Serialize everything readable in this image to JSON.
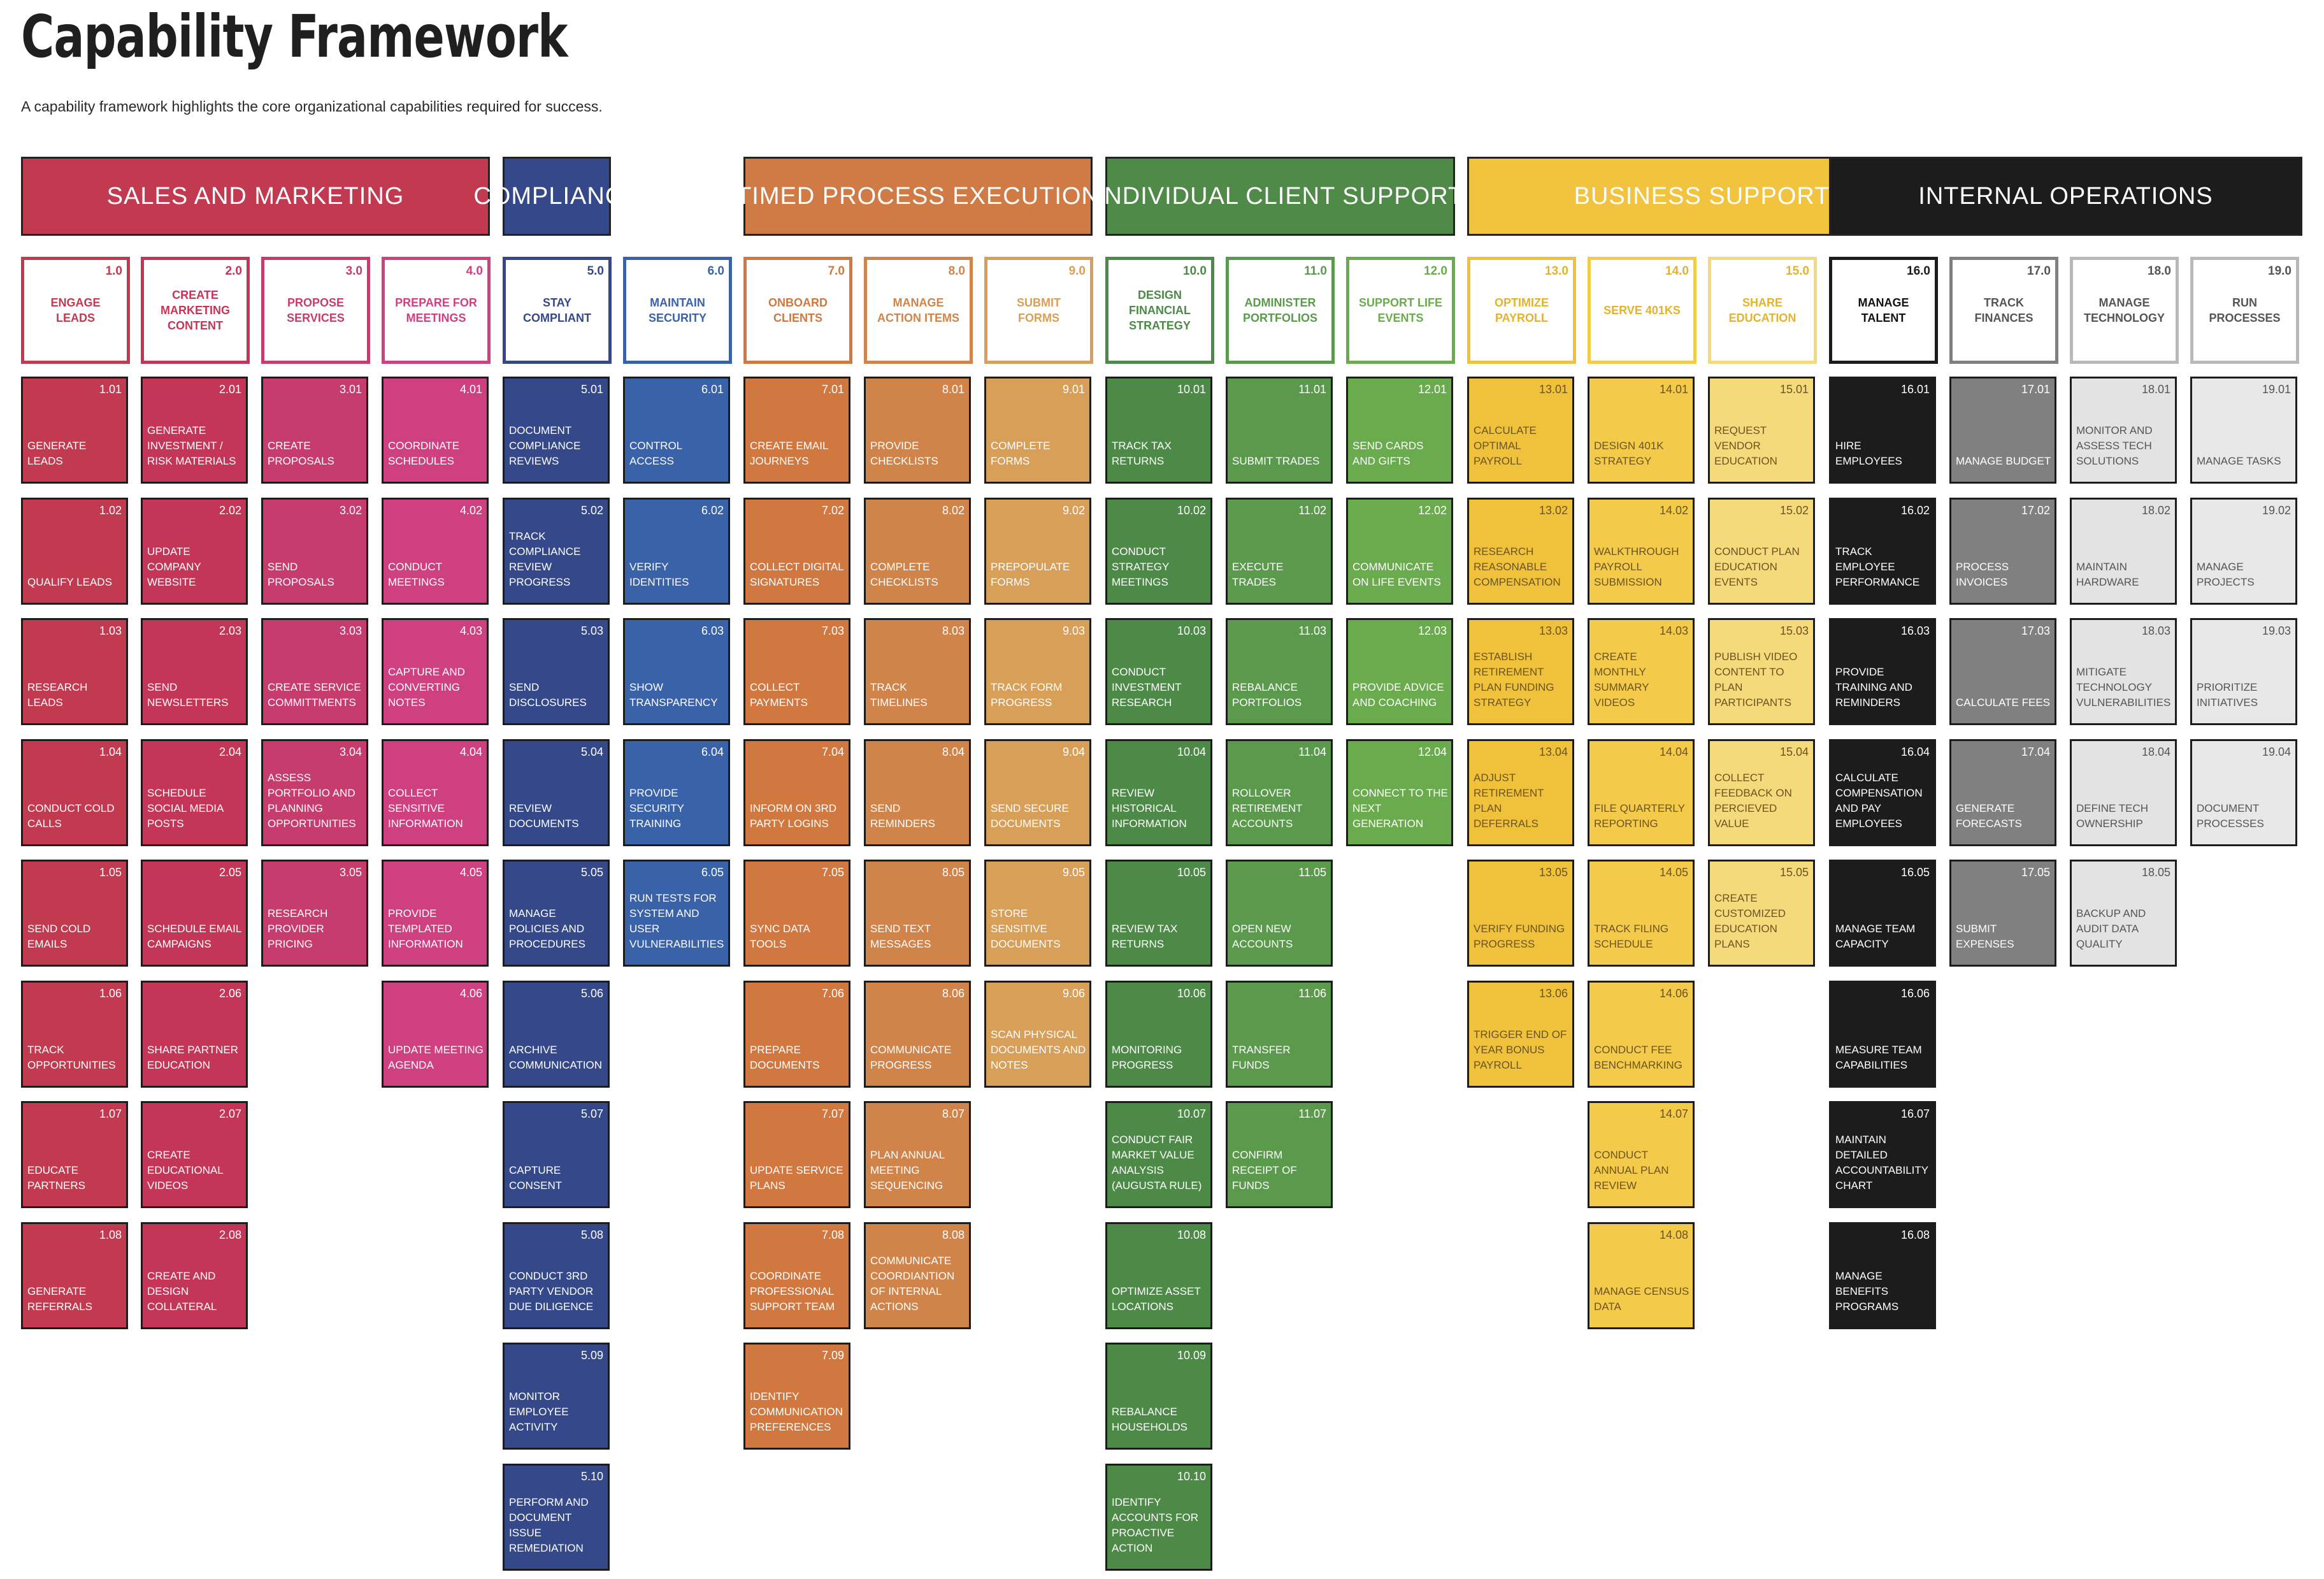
{
  "title": "Capability Framework",
  "subtitle": "A capability framework highlights the core organizational capabilities required for success.",
  "groups": [
    {
      "name": "SALES AND MARKETING",
      "color": "#c23a50",
      "capabilities": [
        {
          "number": "1.0",
          "name": "ENGAGE LEADS",
          "border": "#c23a50",
          "tile_color": "#c23a50",
          "text_color": "#ffffff",
          "items": [
            {
              "id": "1.01",
              "label": "Generate leads"
            },
            {
              "id": "1.02",
              "label": "Qualify leads"
            },
            {
              "id": "1.03",
              "label": "Research leads"
            },
            {
              "id": "1.04",
              "label": "Conduct cold calls"
            },
            {
              "id": "1.05",
              "label": "Send cold emails"
            },
            {
              "id": "1.06",
              "label": "Track opportunities"
            },
            {
              "id": "1.07",
              "label": "Educate partners"
            },
            {
              "id": "1.08",
              "label": "Generate referrals"
            }
          ]
        },
        {
          "number": "2.0",
          "name": "CREATE MARKETING CONTENT",
          "border": "#c43658",
          "tile_color": "#c43658",
          "text_color": "#ffffff",
          "items": [
            {
              "id": "2.01",
              "label": "Generate investment / risk materials"
            },
            {
              "id": "2.02",
              "label": "Update company website"
            },
            {
              "id": "2.03",
              "label": "Send newsletters"
            },
            {
              "id": "2.04",
              "label": "Schedule social media posts"
            },
            {
              "id": "2.05",
              "label": "Schedule email campaigns"
            },
            {
              "id": "2.06",
              "label": "Share partner education"
            },
            {
              "id": "2.07",
              "label": "Create educational videos"
            },
            {
              "id": "2.08",
              "label": "Create and design collateral"
            }
          ]
        },
        {
          "number": "3.0",
          "name": "PROPOSE SERVICES",
          "border": "#c63c6c",
          "tile_color": "#c63c6c",
          "text_color": "#ffffff",
          "items": [
            {
              "id": "3.01",
              "label": "Create proposals"
            },
            {
              "id": "3.02",
              "label": "Send proposals"
            },
            {
              "id": "3.03",
              "label": "Create service committments"
            },
            {
              "id": "3.04",
              "label": "Assess portfolio and planning opportunities"
            },
            {
              "id": "3.05",
              "label": "Research provider pricing"
            }
          ]
        },
        {
          "number": "4.0",
          "name": "PREPARE FOR MEETINGS",
          "border": "#cf4080",
          "tile_color": "#cf4080",
          "text_color": "#ffffff",
          "items": [
            {
              "id": "4.01",
              "label": "Coordinate schedules"
            },
            {
              "id": "4.02",
              "label": "Conduct meetings"
            },
            {
              "id": "4.03",
              "label": "Capture and converting notes"
            },
            {
              "id": "4.04",
              "label": "Collect sensitive information"
            },
            {
              "id": "4.05",
              "label": "Provide templated information"
            },
            {
              "id": "4.06",
              "label": "Update meeting agenda"
            }
          ]
        }
      ]
    },
    {
      "name": "COMPLIANCE",
      "color": "#35488a",
      "capabilities": [
        {
          "number": "5.0",
          "name": "STAY COMPLIANT",
          "border": "#34488a",
          "tile_color": "#34488a",
          "text_color": "#ffffff",
          "items": [
            {
              "id": "5.01",
              "label": "Document compliance reviews"
            },
            {
              "id": "5.02",
              "label": "Track compliance review progress"
            },
            {
              "id": "5.03",
              "label": "Send disclosures"
            },
            {
              "id": "5.04",
              "label": "Review documents"
            },
            {
              "id": "5.05",
              "label": "Manage policies and procedures"
            },
            {
              "id": "5.06",
              "label": "Archive communication"
            },
            {
              "id": "5.07",
              "label": "Capture consent"
            },
            {
              "id": "5.08",
              "label": "Conduct 3rd party vendor due diligence"
            },
            {
              "id": "5.09",
              "label": "Monitor employee activity"
            },
            {
              "id": "5.10",
              "label": "Perform and document issue remediation"
            }
          ]
        },
        {
          "number": "6.0",
          "name": "MAINTAIN SECURITY",
          "border": "#3a62a8",
          "tile_color": "#3a62a8",
          "text_color": "#ffffff",
          "items": [
            {
              "id": "6.01",
              "label": "Control access"
            },
            {
              "id": "6.02",
              "label": "Verify identities"
            },
            {
              "id": "6.03",
              "label": "Show transparency"
            },
            {
              "id": "6.04",
              "label": "Provide security training"
            },
            {
              "id": "6.05",
              "label": "Run tests for system and user vulnerabilities"
            }
          ]
        }
      ]
    },
    {
      "name": "TIMED PROCESS EXECUTION",
      "color": "#d07b45",
      "capabilities": [
        {
          "number": "7.0",
          "name": "ONBOARD CLIENTS",
          "border": "#d07840",
          "tile_color": "#d07840",
          "text_color": "#ffffff",
          "items": [
            {
              "id": "7.01",
              "label": "Create email journeys"
            },
            {
              "id": "7.02",
              "label": "Collect digital signatures"
            },
            {
              "id": "7.03",
              "label": "Collect payments"
            },
            {
              "id": "7.04",
              "label": "Inform on 3rd party logins"
            },
            {
              "id": "7.05",
              "label": "Sync data tools"
            },
            {
              "id": "7.06",
              "label": "Prepare documents"
            },
            {
              "id": "7.07",
              "label": "Update service plans"
            },
            {
              "id": "7.08",
              "label": "Coordinate professional support team"
            },
            {
              "id": "7.09",
              "label": "Identify communication preferences"
            }
          ]
        },
        {
          "number": "8.0",
          "name": "MANAGE ACTION ITEMS",
          "border": "#d0844a",
          "tile_color": "#d0844a",
          "text_color": "#ffffff",
          "items": [
            {
              "id": "8.01",
              "label": "Provide checklists"
            },
            {
              "id": "8.02",
              "label": "Complete checklists"
            },
            {
              "id": "8.03",
              "label": "Track timelines"
            },
            {
              "id": "8.04",
              "label": "Send reminders"
            },
            {
              "id": "8.05",
              "label": "Send text messages"
            },
            {
              "id": "8.06",
              "label": "Communicate progress"
            },
            {
              "id": "8.07",
              "label": "Plan annual meeting sequencing"
            },
            {
              "id": "8.08",
              "label": "Communicate coordiantion of internal actions"
            }
          ]
        },
        {
          "number": "9.0",
          "name": "SUBMIT FORMS",
          "border": "#d89f58",
          "tile_color": "#d89f58",
          "text_color": "#ffffff",
          "items": [
            {
              "id": "9.01",
              "label": "Complete forms"
            },
            {
              "id": "9.02",
              "label": "Prepopulate forms"
            },
            {
              "id": "9.03",
              "label": "Track form progress"
            },
            {
              "id": "9.04",
              "label": "Send secure documents"
            },
            {
              "id": "9.05",
              "label": "Store sensitive documents"
            },
            {
              "id": "9.06",
              "label": "Scan physical documents and notes"
            }
          ]
        }
      ]
    },
    {
      "name": "INDIVIDUAL CLIENT SUPPORT",
      "color": "#4f8a48",
      "capabilities": [
        {
          "number": "10.0",
          "name": "DESIGN FINANCIAL STRATEGY",
          "border": "#4d8a47",
          "tile_color": "#4d8a47",
          "text_color": "#ffffff",
          "items": [
            {
              "id": "10.01",
              "label": "Track tax returns"
            },
            {
              "id": "10.02",
              "label": "Conduct strategy meetings"
            },
            {
              "id": "10.03",
              "label": "Conduct investment research"
            },
            {
              "id": "10.04",
              "label": "Review historical information"
            },
            {
              "id": "10.05",
              "label": "Review tax returns"
            },
            {
              "id": "10.06",
              "label": "Monitoring progress"
            },
            {
              "id": "10.07",
              "label": "Conduct fair market value analysis (augusta rule)"
            },
            {
              "id": "10.08",
              "label": "Optimize asset locations"
            },
            {
              "id": "10.09",
              "label": "Rebalance households"
            },
            {
              "id": "10.10",
              "label": "Identify accounts for proactive action"
            }
          ]
        },
        {
          "number": "11.0",
          "name": "ADMINISTER PORTFOLIOS",
          "border": "#5b9a4c",
          "tile_color": "#5b9a4c",
          "text_color": "#ffffff",
          "items": [
            {
              "id": "11.01",
              "label": "Submit trades"
            },
            {
              "id": "11.02",
              "label": "Execute trades"
            },
            {
              "id": "11.03",
              "label": "Rebalance portfolios"
            },
            {
              "id": "11.04",
              "label": "Rollover retirement accounts"
            },
            {
              "id": "11.05",
              "label": "Open new accounts"
            },
            {
              "id": "11.06",
              "label": "Transfer funds"
            },
            {
              "id": "11.07",
              "label": "Confirm receipt of funds"
            }
          ]
        },
        {
          "number": "12.0",
          "name": "SUPPORT LIFE EVENTS",
          "border": "#6aab4e",
          "tile_color": "#6aab4e",
          "text_color": "#ffffff",
          "items": [
            {
              "id": "12.01",
              "label": "Send cards and gifts"
            },
            {
              "id": "12.02",
              "label": "Communicate on life events"
            },
            {
              "id": "12.03",
              "label": "Provide advice and coaching"
            },
            {
              "id": "12.04",
              "label": "Connect to the next generation"
            }
          ]
        }
      ]
    },
    {
      "name": "BUSINESS SUPPORT",
      "color": "#f2c33e",
      "capabilities": [
        {
          "number": "13.0",
          "name": "OPTIMIZE PAYROLL",
          "border": "#f0c23c",
          "tile_color": "#f0c23c",
          "text_color": "#6b5420",
          "items": [
            {
              "id": "13.01",
              "label": "Calculate optimal payroll"
            },
            {
              "id": "13.02",
              "label": "Research reasonable compensation"
            },
            {
              "id": "13.03",
              "label": "Establish retirement plan funding strategy"
            },
            {
              "id": "13.04",
              "label": "Adjust retirement plan deferrals"
            },
            {
              "id": "13.05",
              "label": "Verify funding progress"
            },
            {
              "id": "13.06",
              "label": "Trigger end of year bonus payroll"
            }
          ]
        },
        {
          "number": "14.0",
          "name": "SERVE 401KS",
          "border": "#f4ca4a",
          "tile_color": "#f4ca4a",
          "text_color": "#6b5420",
          "items": [
            {
              "id": "14.01",
              "label": "Design 401k strategy"
            },
            {
              "id": "14.02",
              "label": "Walkthrough payroll submission"
            },
            {
              "id": "14.03",
              "label": "Create monthly summary videos"
            },
            {
              "id": "14.04",
              "label": "File quarterly reporting"
            },
            {
              "id": "14.05",
              "label": "Track filing schedule"
            },
            {
              "id": "14.06",
              "label": "Conduct fee benchmarking"
            },
            {
              "id": "14.07",
              "label": "Conduct annual plan review"
            },
            {
              "id": "14.08",
              "label": "Manage census data"
            }
          ]
        },
        {
          "number": "15.0",
          "name": "SHARE EDUCATION",
          "border": "#f5da7c",
          "tile_color": "#f5da7c",
          "text_color": "#6b5420",
          "items": [
            {
              "id": "15.01",
              "label": "Request vendor education"
            },
            {
              "id": "15.02",
              "label": "Conduct plan education events"
            },
            {
              "id": "15.03",
              "label": "Publish video content to plan participants"
            },
            {
              "id": "15.04",
              "label": "Collect feedback on percieved value"
            },
            {
              "id": "15.05",
              "label": "Create customized education plans"
            }
          ]
        }
      ]
    },
    {
      "name": "INTERNAL OPERATIONS",
      "color": "#1c1c1c",
      "capabilities": [
        {
          "number": "16.0",
          "name": "MANAGE TALENT",
          "border": "#1c1c1c",
          "tile_color": "#1c1c1c",
          "text_color": "#ffffff",
          "items": [
            {
              "id": "16.01",
              "label": "Hire employees"
            },
            {
              "id": "16.02",
              "label": "Track employee performance"
            },
            {
              "id": "16.03",
              "label": "Provide training and reminders"
            },
            {
              "id": "16.04",
              "label": "Calculate compensation and pay employees"
            },
            {
              "id": "16.05",
              "label": "Manage team capacity"
            },
            {
              "id": "16.06",
              "label": "Measure team capabilities"
            },
            {
              "id": "16.07",
              "label": "Maintain detailed accountability chart"
            },
            {
              "id": "16.08",
              "label": "Manage benefits programs"
            }
          ]
        },
        {
          "number": "17.0",
          "name": "TRACK FINANCES",
          "border": "#808080",
          "tile_color": "#808080",
          "text_color": "#ffffff",
          "items": [
            {
              "id": "17.01",
              "label": "Manage budget"
            },
            {
              "id": "17.02",
              "label": "Process invoices"
            },
            {
              "id": "17.03",
              "label": "Calculate fees"
            },
            {
              "id": "17.04",
              "label": "Generate forecasts"
            },
            {
              "id": "17.05",
              "label": "Submit expenses"
            }
          ]
        },
        {
          "number": "18.0",
          "name": "MANAGE TECHNOLOGY",
          "border": "#b9b9b9",
          "tile_color": "#e3e3e3",
          "text_color": "#555555",
          "items": [
            {
              "id": "18.01",
              "label": "Monitor and assess tech solutions"
            },
            {
              "id": "18.02",
              "label": "Maintain hardware"
            },
            {
              "id": "18.03",
              "label": "Mitigate technology vulnerabilities"
            },
            {
              "id": "18.04",
              "label": "Define tech ownership"
            },
            {
              "id": "18.05",
              "label": "Backup and audit data quality"
            }
          ]
        },
        {
          "number": "19.0",
          "name": "RUN PROCESSES",
          "border": "#b9b9b9",
          "tile_color": "#e8e8e8",
          "text_color": "#555555",
          "items": [
            {
              "id": "19.01",
              "label": "Manage tasks"
            },
            {
              "id": "19.02",
              "label": "Manage projects"
            },
            {
              "id": "19.03",
              "label": "Prioritize initiatives"
            },
            {
              "id": "19.04",
              "label": "Document processes"
            }
          ]
        }
      ]
    }
  ]
}
